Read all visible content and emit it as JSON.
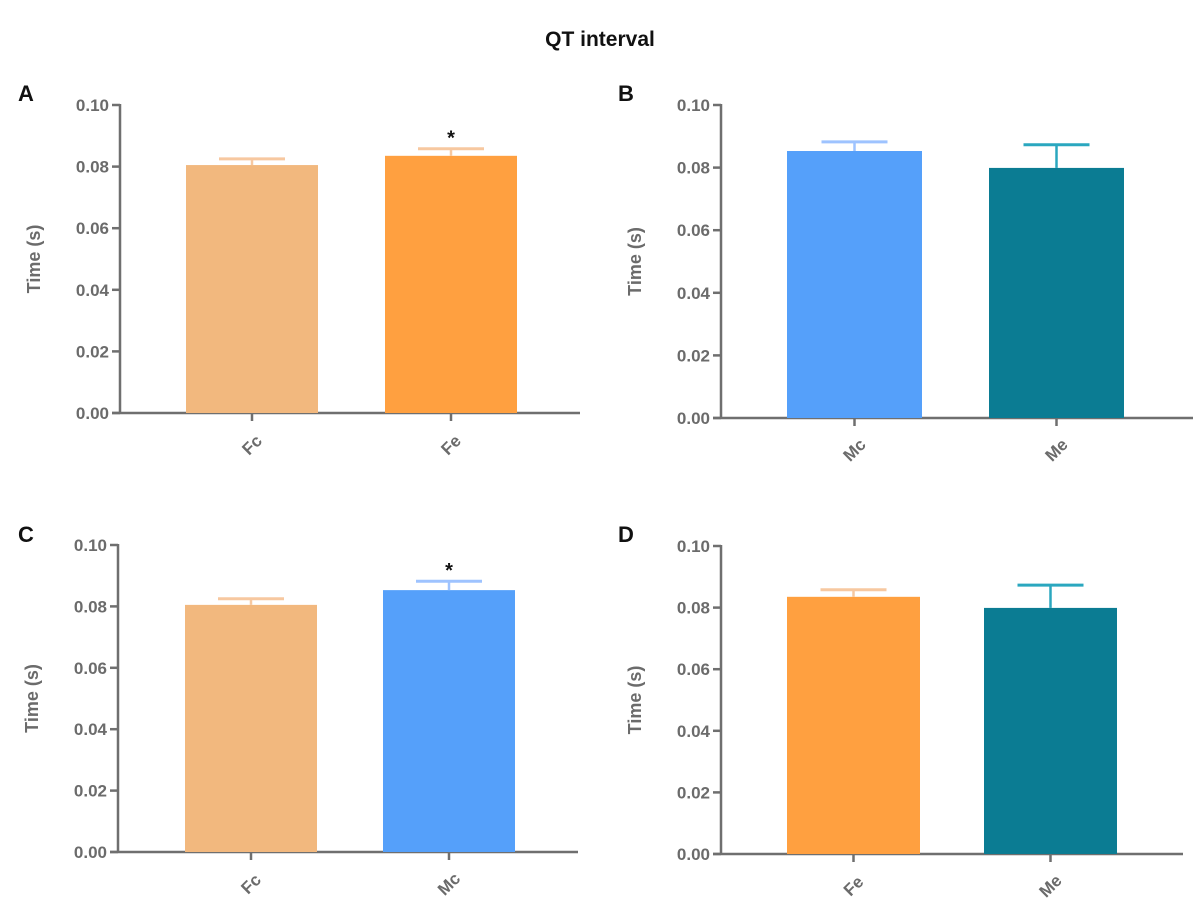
{
  "title": "QT interval",
  "chart_data": [
    {
      "panel": "A",
      "type": "bar",
      "title": "",
      "xlabel": "",
      "ylabel": "Time (s)",
      "ylim": [
        0,
        0.1
      ],
      "yticks": [
        "0.00",
        "0.02",
        "0.04",
        "0.06",
        "0.08",
        "0.10"
      ],
      "categories": [
        "Fc",
        "Fe"
      ],
      "values": [
        0.0805,
        0.0835
      ],
      "error_upper": [
        0.0825,
        0.0858
      ],
      "significance": [
        "",
        "*"
      ],
      "colors": [
        "#F2B87E",
        "#FFA040"
      ],
      "error_colors": [
        "#F7C8A0",
        "#F7C8A0"
      ]
    },
    {
      "panel": "B",
      "type": "bar",
      "title": "",
      "xlabel": "",
      "ylabel": "Time (s)",
      "ylim": [
        0,
        0.1
      ],
      "yticks": [
        "0.00",
        "0.02",
        "0.04",
        "0.06",
        "0.08",
        "0.10"
      ],
      "categories": [
        "Mc",
        "Me"
      ],
      "values": [
        0.0853,
        0.0799
      ],
      "error_upper": [
        0.0882,
        0.0873
      ],
      "significance": [
        "",
        ""
      ],
      "colors": [
        "#55A0FA",
        "#0B7C93"
      ],
      "error_colors": [
        "#9EC3FF",
        "#2AA7BF"
      ]
    },
    {
      "panel": "C",
      "type": "bar",
      "title": "",
      "xlabel": "",
      "ylabel": "Time (s)",
      "ylim": [
        0,
        0.1
      ],
      "yticks": [
        "0.00",
        "0.02",
        "0.04",
        "0.06",
        "0.08",
        "0.10"
      ],
      "categories": [
        "Fc",
        "Mc"
      ],
      "values": [
        0.0805,
        0.0853
      ],
      "error_upper": [
        0.0825,
        0.0882
      ],
      "significance": [
        "",
        "*"
      ],
      "colors": [
        "#F2B87E",
        "#55A0FA"
      ],
      "error_colors": [
        "#F7C8A0",
        "#9EC3FF"
      ]
    },
    {
      "panel": "D",
      "type": "bar",
      "title": "",
      "xlabel": "",
      "ylabel": "Time (s)",
      "ylim": [
        0,
        0.1
      ],
      "yticks": [
        "0.00",
        "0.02",
        "0.04",
        "0.06",
        "0.08",
        "0.10"
      ],
      "categories": [
        "Fe",
        "Me"
      ],
      "values": [
        0.0835,
        0.0799
      ],
      "error_upper": [
        0.0858,
        0.0873
      ],
      "significance": [
        "",
        ""
      ],
      "colors": [
        "#FFA040",
        "#0B7C93"
      ],
      "error_colors": [
        "#F7C8A0",
        "#2AA7BF"
      ]
    }
  ]
}
